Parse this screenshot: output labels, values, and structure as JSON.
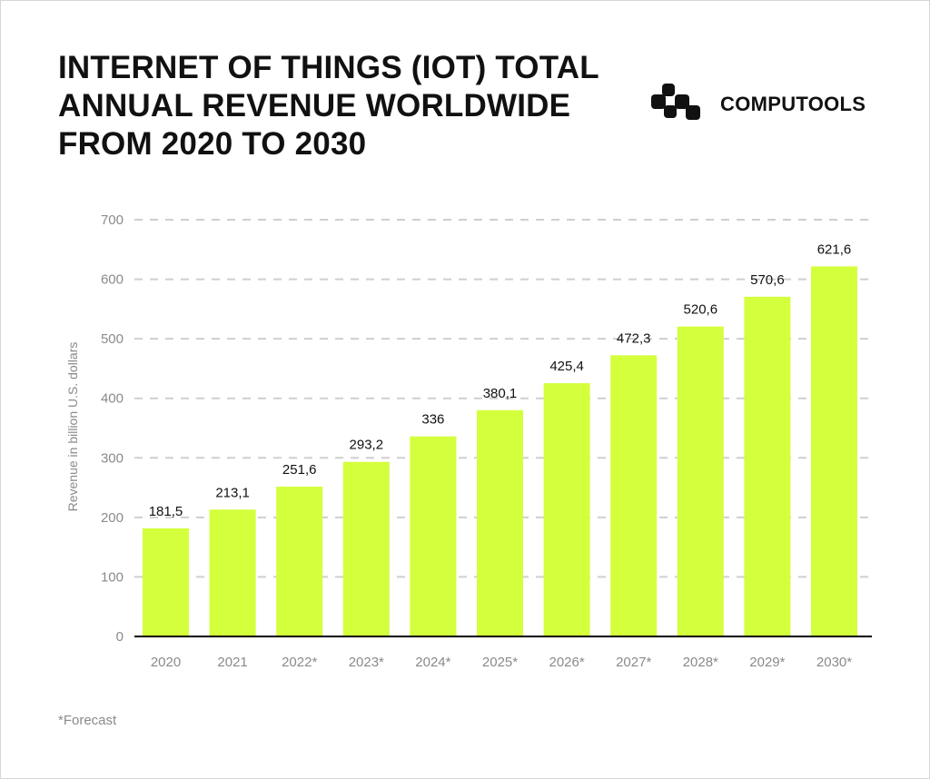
{
  "header": {
    "title_lines": [
      "INTERNET OF THINGS (IOT) TOTAL",
      "ANNUAL REVENUE WORLDWIDE",
      "FROM 2020 TO 2030"
    ]
  },
  "logo": {
    "text": "COMPUTOOLS",
    "icon": "computools-logo-icon"
  },
  "footnote": "*Forecast",
  "chart_data": {
    "type": "bar",
    "title": "INTERNET OF THINGS (IOT) TOTAL ANNUAL REVENUE WORLDWIDE FROM 2020 TO 2030",
    "xlabel": "",
    "ylabel": "Revenue in billion U.S. dollars",
    "ylim": [
      0,
      700
    ],
    "yticks": [
      0,
      100,
      200,
      300,
      400,
      500,
      600,
      700
    ],
    "grid": true,
    "categories": [
      "2020",
      "2021",
      "2022*",
      "2023*",
      "2024*",
      "2025*",
      "2026*",
      "2027*",
      "2028*",
      "2029*",
      "2030*"
    ],
    "values": [
      181.5,
      213.1,
      251.6,
      293.2,
      336,
      380.1,
      425.4,
      472.3,
      520.6,
      570.6,
      621.6
    ],
    "data_labels": [
      "181,5",
      "213,1",
      "251,6",
      "293,2",
      "336",
      "380,1",
      "425,4",
      "472,3",
      "520,6",
      "570,6",
      "621,6"
    ],
    "bar_color": "#d4ff3c"
  }
}
